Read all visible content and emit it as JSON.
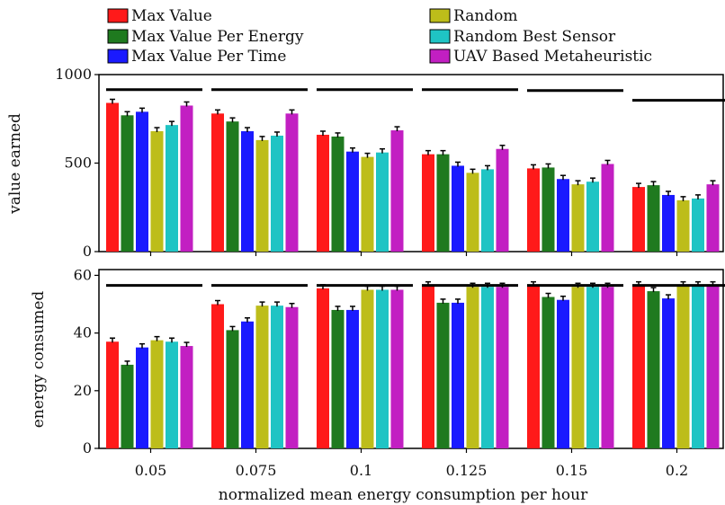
{
  "chart_data": {
    "type": "bar",
    "categories": [
      "0.05",
      "0.075",
      "0.1",
      "0.125",
      "0.15",
      "0.2"
    ],
    "xlabel": "normalized mean energy consumption per hour",
    "legend": {
      "placement": "top",
      "entries": [
        {
          "name": "Max Value",
          "color": "#ff1a1a"
        },
        {
          "name": "Max Value Per Energy",
          "color": "#1f7a1f"
        },
        {
          "name": "Max Value Per Time",
          "color": "#1a1aff"
        },
        {
          "name": "Random",
          "color": "#bdbd1a"
        },
        {
          "name": "Random Best Sensor",
          "color": "#1fc4c4"
        },
        {
          "name": "UAV Based Metaheuristic",
          "color": "#c21fc2"
        }
      ]
    },
    "panels": [
      {
        "ylabel": "value earned",
        "ylim": [
          0,
          1000
        ],
        "yticks": [
          0,
          500,
          1000
        ],
        "grid": false,
        "reference_line_values": [
          915,
          915,
          915,
          915,
          910,
          855
        ],
        "series": [
          {
            "name": "Max Value",
            "values": [
              840,
              780,
              660,
              550,
              470,
              365
            ]
          },
          {
            "name": "Max Value Per Energy",
            "values": [
              770,
              735,
              650,
              550,
              475,
              375
            ]
          },
          {
            "name": "Max Value Per Time",
            "values": [
              790,
              680,
              565,
              485,
              410,
              320
            ]
          },
          {
            "name": "Random",
            "values": [
              680,
              630,
              535,
              445,
              380,
              290
            ]
          },
          {
            "name": "Random Best Sensor",
            "values": [
              715,
              655,
              560,
              465,
              395,
              300
            ]
          },
          {
            "name": "UAV Based Metaheuristic",
            "values": [
              825,
              780,
              685,
              580,
              495,
              380
            ]
          }
        ]
      },
      {
        "ylabel": "energy consumed",
        "ylim": [
          0,
          62
        ],
        "yticks": [
          0,
          20,
          40,
          60
        ],
        "grid": false,
        "reference_line_values": [
          56.5,
          56.5,
          56.5,
          56.5,
          56.5,
          56.5
        ],
        "series": [
          {
            "name": "Max Value",
            "values": [
              37,
              50,
              55.5,
              56.5,
              56.5,
              56.5
            ]
          },
          {
            "name": "Max Value Per Energy",
            "values": [
              29,
              41,
              48,
              50.5,
              52.5,
              54.5
            ]
          },
          {
            "name": "Max Value Per Time",
            "values": [
              35,
              44,
              48,
              50.5,
              51.5,
              52
            ]
          },
          {
            "name": "Random",
            "values": [
              37.5,
              49.5,
              55,
              56,
              56,
              56.5
            ]
          },
          {
            "name": "Random Best Sensor",
            "values": [
              37,
              49.5,
              55,
              56,
              56,
              56.5
            ]
          },
          {
            "name": "UAV Based Metaheuristic",
            "values": [
              35.5,
              49,
              55,
              56,
              56,
              56.5
            ]
          }
        ]
      }
    ]
  }
}
